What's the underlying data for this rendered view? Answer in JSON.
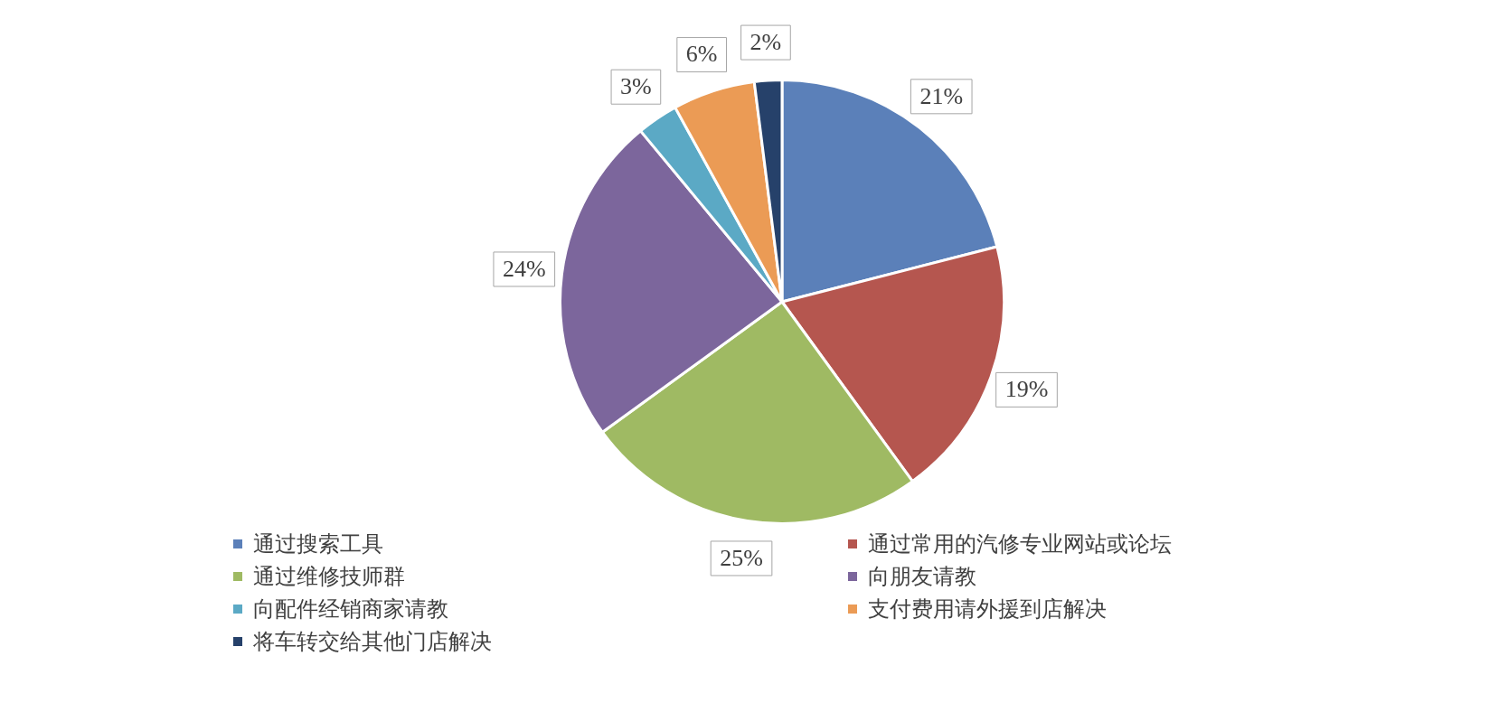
{
  "chart_data": {
    "type": "pie",
    "categories": [
      "通过搜索工具",
      "通过常用的汽修专业网站或论坛",
      "通过维修技师群",
      "向朋友请教",
      "向配件经销商家请教",
      "支付费用请外援到店解决",
      "将车转交给其他门店解决"
    ],
    "values": [
      21,
      19,
      25,
      24,
      3,
      6,
      2
    ],
    "colors": [
      "#5b80b9",
      "#b5564f",
      "#9fba63",
      "#7c669c",
      "#5ba9c5",
      "#eb9b55",
      "#26416a"
    ],
    "value_labels": [
      "21%",
      "19%",
      "25%",
      "24%",
      "3%",
      "6%",
      "2%"
    ],
    "legend": "bottom"
  }
}
